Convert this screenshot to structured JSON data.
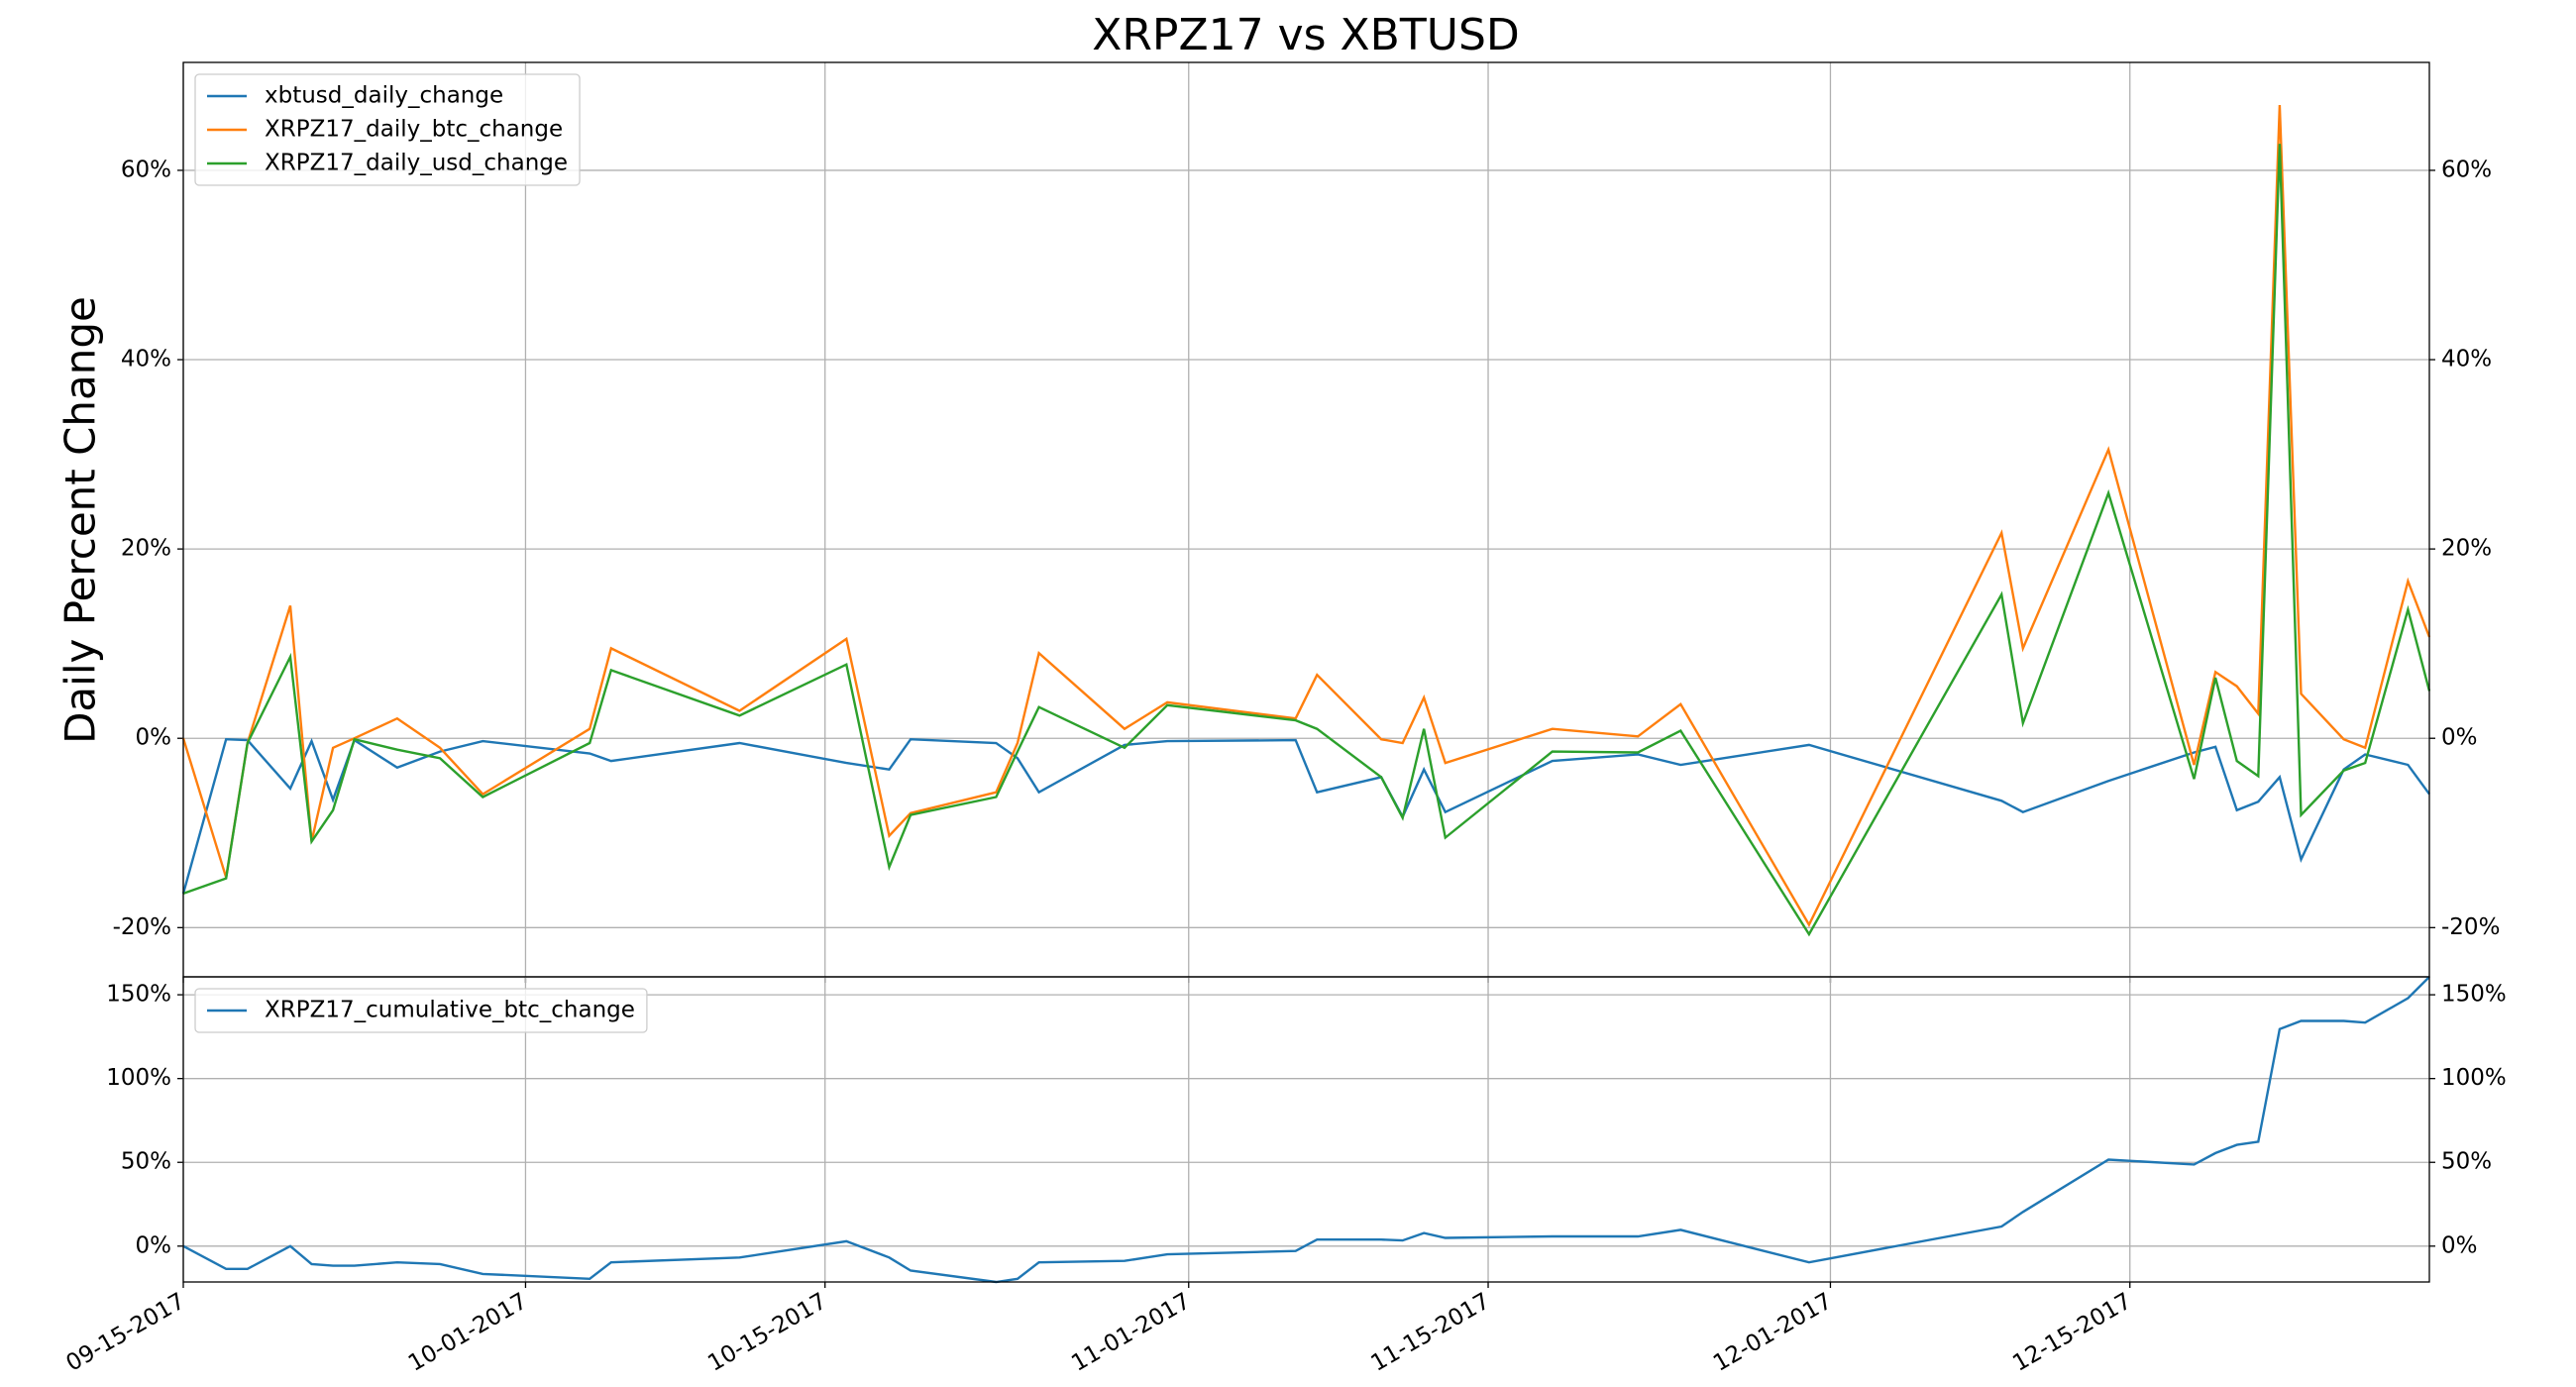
{
  "chart_data": [
    {
      "type": "line",
      "title": "XRPZ17 vs XBTUSD",
      "ylabel": "Daily Percent Change",
      "x": [
        "2017-09-15",
        "2017-09-17",
        "2017-09-18",
        "2017-09-20",
        "2017-09-21",
        "2017-09-22",
        "2017-09-23",
        "2017-09-25",
        "2017-09-27",
        "2017-09-29",
        "2017-10-04",
        "2017-10-05",
        "2017-10-11",
        "2017-10-16",
        "2017-10-18",
        "2017-10-19",
        "2017-10-23",
        "2017-10-24",
        "2017-10-25",
        "2017-10-29",
        "2017-10-31",
        "2017-11-06",
        "2017-11-07",
        "2017-11-10",
        "2017-11-11",
        "2017-11-12",
        "2017-11-13",
        "2017-11-18",
        "2017-11-22",
        "2017-11-24",
        "2017-11-30",
        "2017-12-09",
        "2017-12-10",
        "2017-12-14",
        "2017-12-18",
        "2017-12-19",
        "2017-12-20",
        "2017-12-21",
        "2017-12-22",
        "2017-12-23",
        "2017-12-25",
        "2017-12-26",
        "2017-12-28",
        "2017-12-29"
      ],
      "series": [
        {
          "name": "xbtusd_daily_change",
          "color": "#1f77b4",
          "values": [
            -16.4,
            -0.1,
            -0.2,
            -5.3,
            -0.3,
            -6.5,
            -0.2,
            -3.1,
            -1.4,
            -0.3,
            -1.6,
            -2.4,
            -0.5,
            -2.6,
            -3.3,
            -0.1,
            -0.5,
            -2.1,
            -5.7,
            -0.7,
            -0.3,
            -0.2,
            -5.7,
            -4.1,
            -8.3,
            -3.3,
            -7.8,
            -2.4,
            -1.7,
            -2.8,
            -0.7,
            -6.6,
            -7.8,
            -4.5,
            -1.5,
            -0.9,
            -7.6,
            -6.7,
            -4.1,
            -12.8,
            -3.3,
            -1.7,
            -2.8,
            -5.9
          ]
        },
        {
          "name": "XRPZ17_daily_btc_change",
          "color": "#ff7f0e",
          "values": [
            0,
            -14.7,
            -0.5,
            14.0,
            -10.9,
            -1.0,
            0,
            2.1,
            -1.0,
            -5.9,
            1.0,
            9.5,
            2.9,
            10.5,
            -10.3,
            -7.9,
            -5.7,
            -0.5,
            9.0,
            1.0,
            3.8,
            2.1,
            6.7,
            -0.1,
            -0.5,
            4.3,
            -2.6,
            1.0,
            0.2,
            3.6,
            -19.7,
            21.7,
            9.5,
            30.5,
            -2.8,
            7.0,
            5.5,
            2.6,
            66.9,
            4.7,
            -0.1,
            -1.0,
            16.6,
            10.7
          ]
        },
        {
          "name": "XRPZ17_daily_usd_change",
          "color": "#2ca02c",
          "values": [
            -16.4,
            -14.8,
            -0.5,
            8.6,
            -10.9,
            -7.6,
            -0.1,
            -1.2,
            -2.1,
            -6.2,
            -0.5,
            7.2,
            2.4,
            7.8,
            -13.6,
            -8.1,
            -6.2,
            -1.4,
            3.3,
            -1.0,
            3.5,
            1.9,
            1.0,
            -4.1,
            -8.4,
            1.0,
            -10.5,
            -1.4,
            -1.5,
            0.8,
            -20.7,
            15.2,
            1.6,
            25.9,
            -4.3,
            6.4,
            -2.4,
            -4.0,
            62.8,
            -8.1,
            -3.4,
            -2.6,
            13.6,
            5.0
          ]
        }
      ],
      "xlim": [
        "2017-09-15",
        "2017-12-29"
      ],
      "xticks": [
        "2017-09-15",
        "2017-10-01",
        "2017-10-15",
        "2017-11-01",
        "2017-11-15",
        "2017-12-01",
        "2017-12-15"
      ],
      "ylim": [
        -25.2,
        71.4
      ],
      "yticks": [
        {
          "value": -20,
          "label": "-20%"
        },
        {
          "value": 0,
          "label": "0%"
        },
        {
          "value": 20,
          "label": "20%"
        },
        {
          "value": 40,
          "label": "40%"
        },
        {
          "value": 60,
          "label": "60%"
        }
      ],
      "grid": true,
      "legend": "upper left"
    },
    {
      "type": "line",
      "x": [
        "2017-09-15",
        "2017-09-17",
        "2017-09-18",
        "2017-09-20",
        "2017-09-21",
        "2017-09-22",
        "2017-09-23",
        "2017-09-25",
        "2017-09-27",
        "2017-09-29",
        "2017-10-04",
        "2017-10-05",
        "2017-10-11",
        "2017-10-16",
        "2017-10-18",
        "2017-10-19",
        "2017-10-23",
        "2017-10-24",
        "2017-10-25",
        "2017-10-29",
        "2017-10-31",
        "2017-11-06",
        "2017-11-07",
        "2017-11-10",
        "2017-11-11",
        "2017-11-12",
        "2017-11-13",
        "2017-11-18",
        "2017-11-22",
        "2017-11-24",
        "2017-11-30",
        "2017-12-09",
        "2017-12-10",
        "2017-12-14",
        "2017-12-18",
        "2017-12-19",
        "2017-12-20",
        "2017-12-21",
        "2017-12-22",
        "2017-12-23",
        "2017-12-25",
        "2017-12-26",
        "2017-12-28",
        "2017-12-29"
      ],
      "series": [
        {
          "name": "XRPZ17_cumulative_btc_change",
          "color": "#1f77b4",
          "values": [
            0,
            -13.6,
            -13.6,
            0,
            -10.7,
            -11.7,
            -11.7,
            -9.7,
            -10.7,
            -16.6,
            -19.5,
            -9.7,
            -6.8,
            2.9,
            -6.8,
            -14.6,
            -21.4,
            -19.5,
            -9.7,
            -8.8,
            -4.9,
            -2.9,
            3.9,
            3.9,
            3.4,
            7.8,
            4.9,
            5.8,
            5.8,
            9.7,
            -9.7,
            11.7,
            20.4,
            51.6,
            48.7,
            55.5,
            60.4,
            62.3,
            129.5,
            134.4,
            134.4,
            133.4,
            148.0,
            160.7
          ]
        }
      ],
      "xlim": [
        "2017-09-15",
        "2017-12-29"
      ],
      "xticks": [
        {
          "value": "2017-09-15",
          "label": "09-15-2017"
        },
        {
          "value": "2017-10-01",
          "label": "10-01-2017"
        },
        {
          "value": "2017-10-15",
          "label": "10-15-2017"
        },
        {
          "value": "2017-11-01",
          "label": "11-01-2017"
        },
        {
          "value": "2017-11-15",
          "label": "11-15-2017"
        },
        {
          "value": "2017-12-01",
          "label": "12-01-2017"
        },
        {
          "value": "2017-12-15",
          "label": "12-15-2017"
        }
      ],
      "ylim": [
        -21.4,
        160.7
      ],
      "yticks": [
        {
          "value": 0,
          "label": "0%"
        },
        {
          "value": 50,
          "label": "50%"
        },
        {
          "value": 100,
          "label": "100%"
        },
        {
          "value": 150,
          "label": "150%"
        }
      ],
      "grid": true,
      "legend": "upper left"
    }
  ]
}
